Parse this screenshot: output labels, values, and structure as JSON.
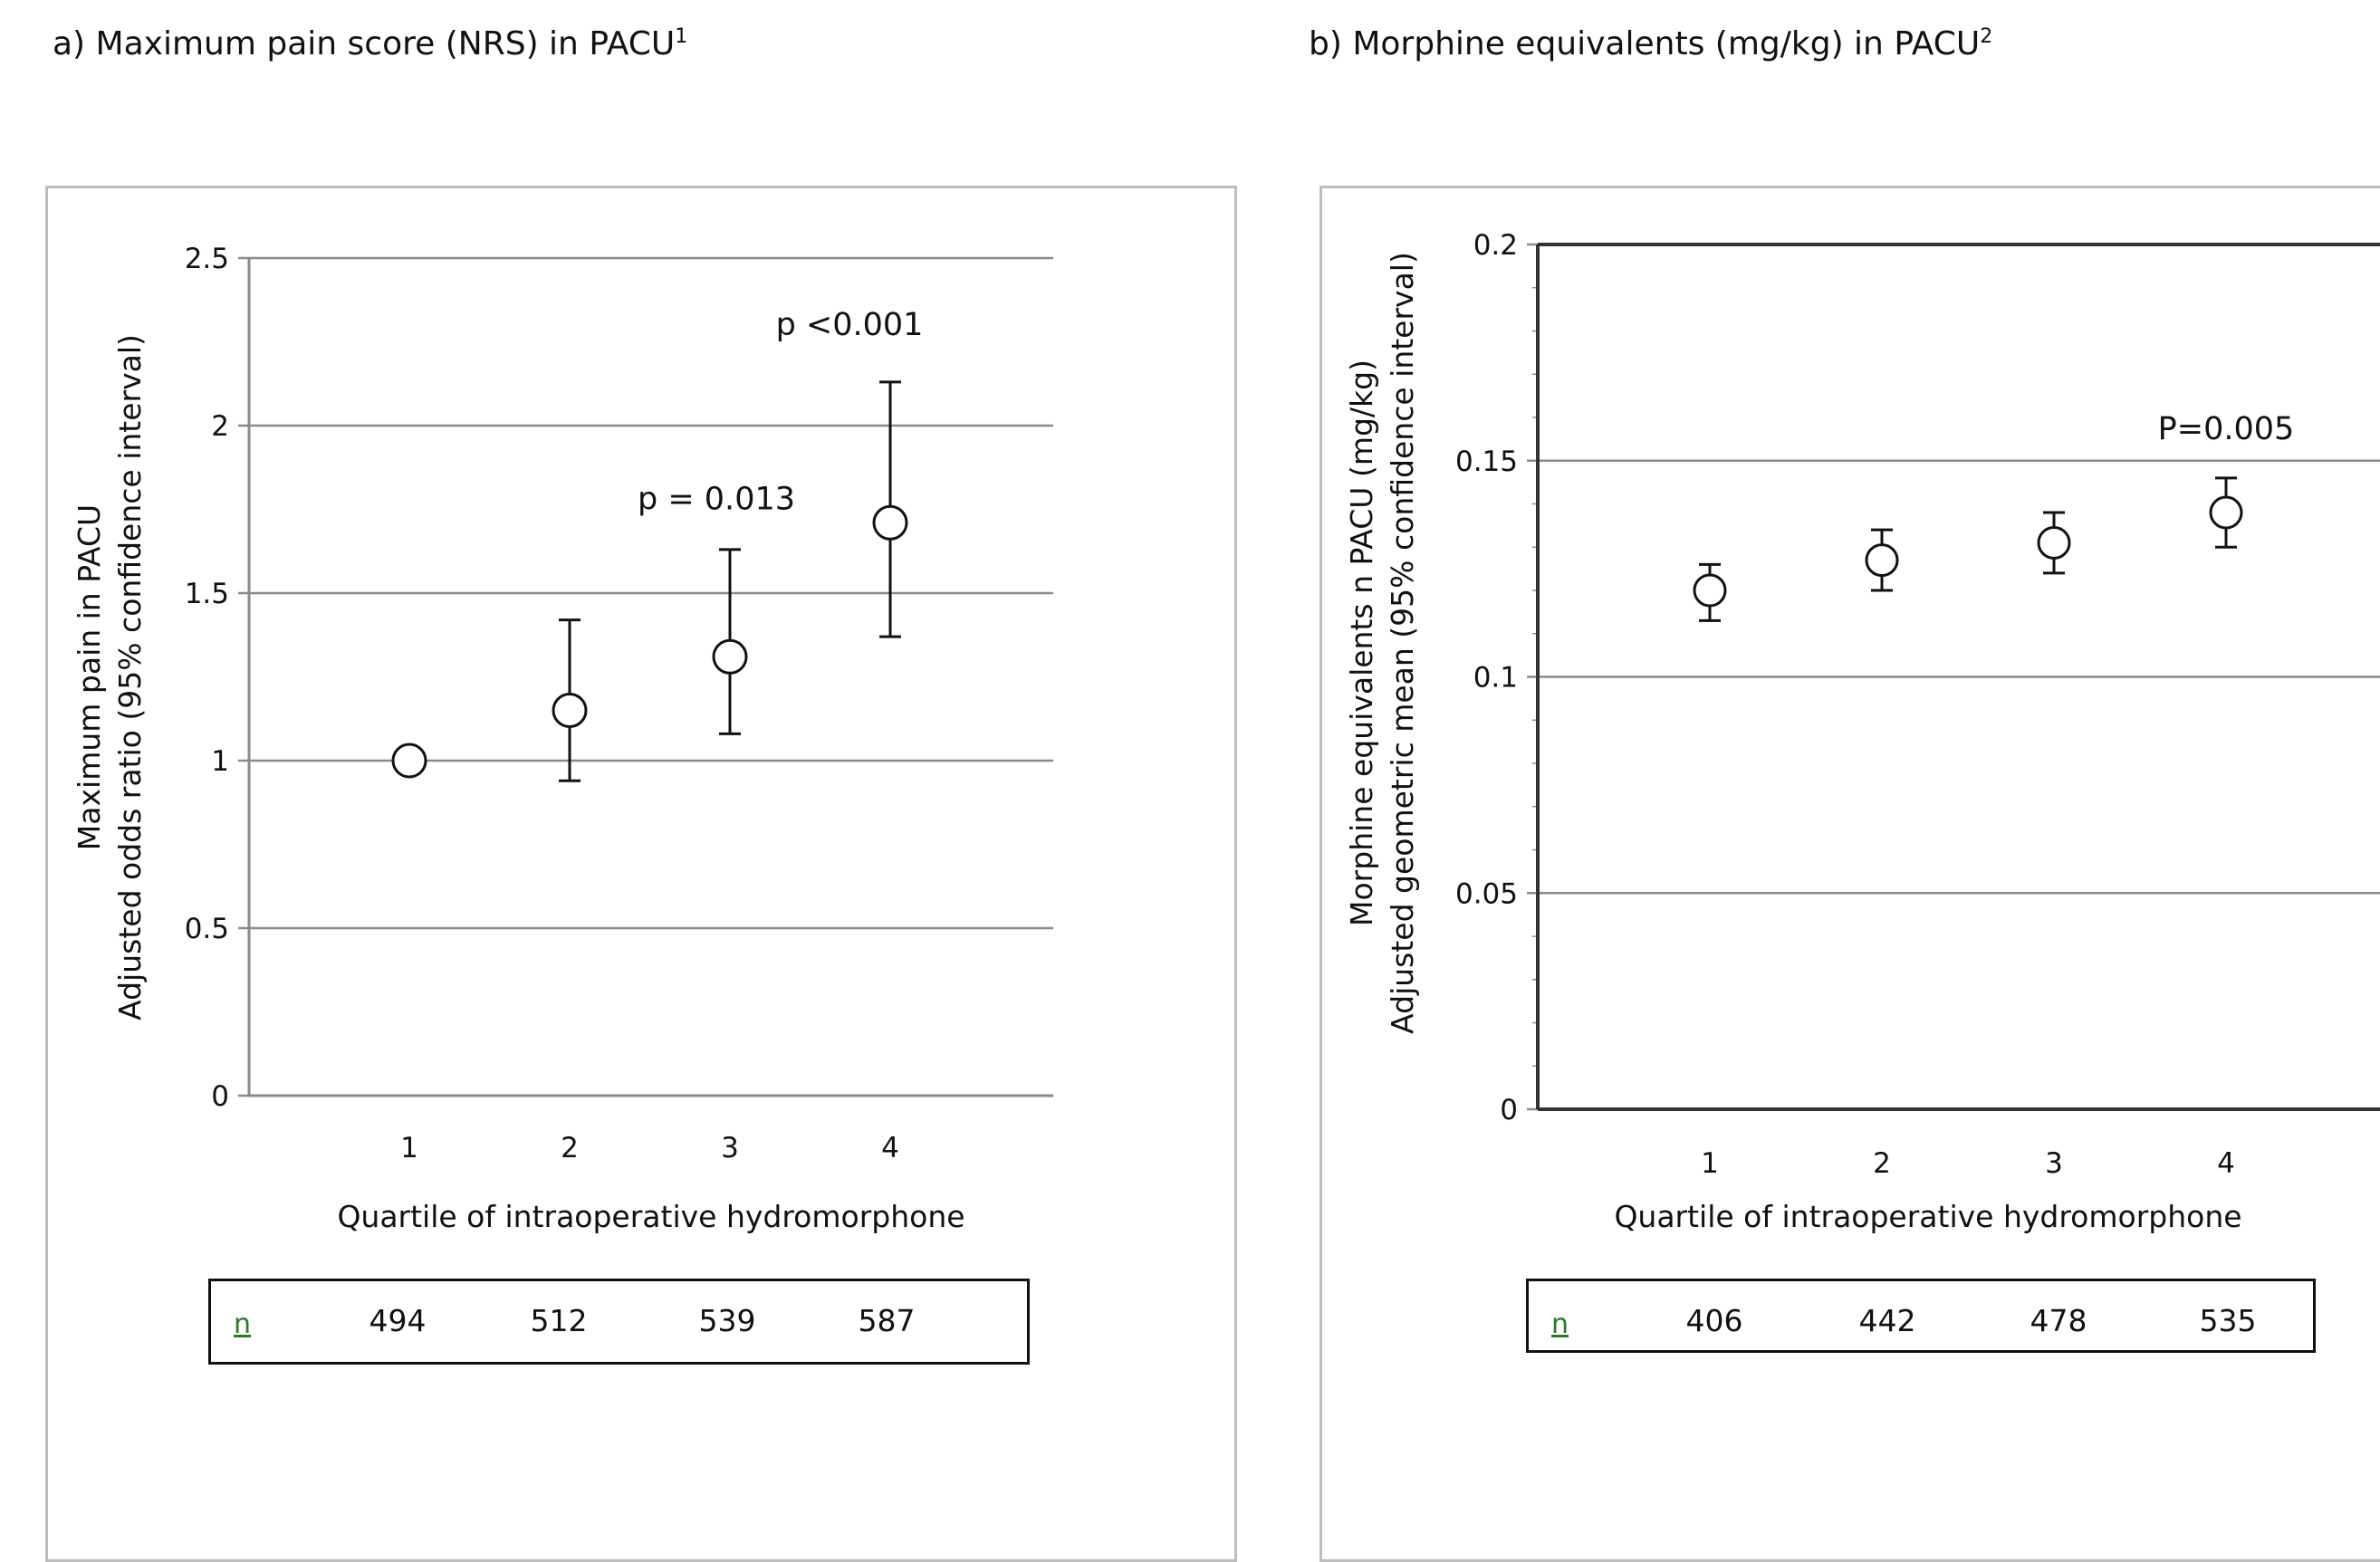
{
  "panels": {
    "a": {
      "title": "a)   Maximum pain score (NRS) in PACU",
      "title_sup": "1"
    },
    "b": {
      "title": "b) Morphine equivalents (mg/kg) in PACU",
      "title_sup": "2"
    }
  },
  "tables": {
    "a": {
      "label": "n",
      "values": [
        "494",
        "512",
        "539",
        "587"
      ]
    },
    "b": {
      "label": "n",
      "values": [
        "406",
        "442",
        "478",
        "535"
      ]
    }
  },
  "chart_data": [
    {
      "type": "scatter",
      "subtype": "point-with-error-bars",
      "title": "a)   Maximum pain score (NRS) in PACU",
      "xlabel": "Quartile of intraoperative hydromorphone",
      "ylabel_line1": "Maximum pain  in PACU",
      "ylabel_line2": "Adjusted odds ratio (95% confidence interval)",
      "x": [
        1,
        2,
        3,
        4
      ],
      "y": [
        1.0,
        1.15,
        1.31,
        1.71
      ],
      "ci_lower": [
        1.0,
        0.94,
        1.08,
        1.37
      ],
      "ci_upper": [
        1.0,
        1.42,
        1.63,
        2.13
      ],
      "ylim": [
        0,
        2.5
      ],
      "yticks": [
        "0",
        "0.5",
        "1",
        "1.5",
        "2",
        "2.5"
      ],
      "xticks": [
        "1",
        "2",
        "3",
        "4"
      ],
      "grid": true,
      "annotations": [
        {
          "text": "p = 0.013",
          "x": 3,
          "y": 1.75
        },
        {
          "text": "p <0.001",
          "x": 4,
          "y": 2.27
        }
      ]
    },
    {
      "type": "scatter",
      "subtype": "point-with-error-bars",
      "title": "b) Morphine equivalents (mg/kg) in PACU",
      "xlabel": "Quartile of intraoperative hydromorphone",
      "ylabel_line1": "Morphine equivalents n PACU (mg/kg)",
      "ylabel_line2": "Adjusted geometric mean (95% confidence interval)",
      "x": [
        1,
        2,
        3,
        4
      ],
      "y": [
        0.12,
        0.127,
        0.131,
        0.138
      ],
      "ci_lower": [
        0.113,
        0.12,
        0.124,
        0.13
      ],
      "ci_upper": [
        0.126,
        0.134,
        0.138,
        0.146
      ],
      "ylim": [
        0,
        0.2
      ],
      "yticks": [
        "0",
        "0.05",
        "0.1",
        "0.15",
        "0.2"
      ],
      "xticks": [
        "1",
        "2",
        "3",
        "4"
      ],
      "grid": true,
      "annotations": [
        {
          "text": "P=0.005",
          "x": 4,
          "y": 0.155
        }
      ]
    }
  ]
}
